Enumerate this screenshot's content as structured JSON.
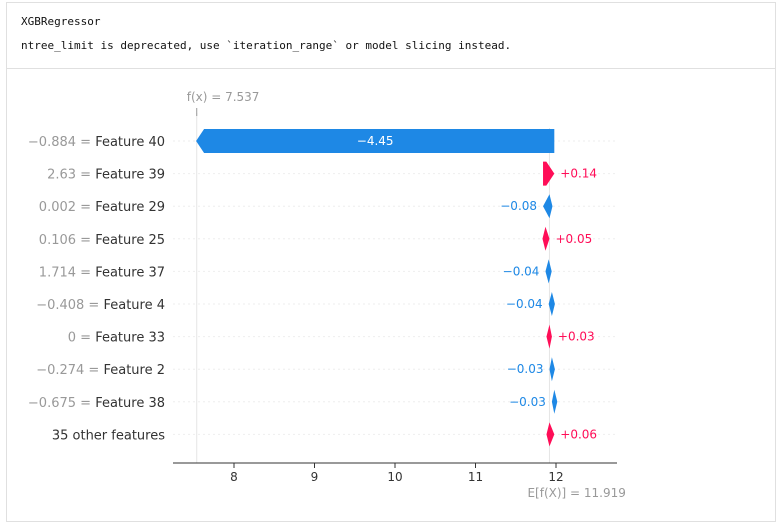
{
  "output": {
    "lines": [
      "XGBRegressor",
      "ntree_limit is deprecated, use `iteration_range` or model slicing instead."
    ]
  },
  "chart_data": {
    "type": "waterfall",
    "fx_label": "f(x) = 7.537",
    "fx_value": 7.537,
    "base_label": "E[f(X)] = 11.919",
    "base_value": 11.919,
    "xlim": [
      7.3,
      12.75
    ],
    "xticks": [
      "8",
      "9",
      "10",
      "11",
      "12"
    ],
    "tick_values": [
      8,
      9,
      10,
      11,
      12
    ],
    "colors": {
      "negative": "#1e88e5",
      "positive": "#ff0d57",
      "value_gray": "#999999",
      "name": "#333333"
    },
    "rows": [
      {
        "value_text": "−0.884",
        "feature": "Feature 40",
        "shap": -4.45,
        "label": "−4.45"
      },
      {
        "value_text": "2.63",
        "feature": "Feature 39",
        "shap": 0.14,
        "label": "+0.14"
      },
      {
        "value_text": "0.002",
        "feature": "Feature 29",
        "shap": -0.08,
        "label": "−0.08"
      },
      {
        "value_text": "0.106",
        "feature": "Feature 25",
        "shap": 0.05,
        "label": "+0.05"
      },
      {
        "value_text": "1.714",
        "feature": "Feature 37",
        "shap": -0.04,
        "label": "−0.04"
      },
      {
        "value_text": "−0.408",
        "feature": "Feature 4",
        "shap": -0.04,
        "label": "−0.04"
      },
      {
        "value_text": "0",
        "feature": "Feature 33",
        "shap": 0.03,
        "label": "+0.03"
      },
      {
        "value_text": "−0.274",
        "feature": "Feature 2",
        "shap": -0.03,
        "label": "−0.03"
      },
      {
        "value_text": "−0.675",
        "feature": "Feature 38",
        "shap": -0.03,
        "label": "−0.03"
      },
      {
        "value_text": "",
        "feature": "35 other features",
        "shap": 0.06,
        "label": "+0.06"
      }
    ]
  }
}
